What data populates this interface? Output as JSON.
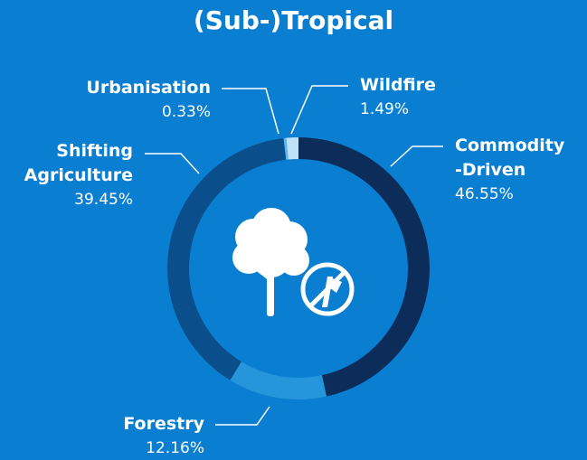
{
  "chart_data": {
    "type": "donut",
    "title": "(Sub-)Tropical",
    "series": [
      {
        "name": "Commodity\n-Driven",
        "color": "#0c2d5a",
        "values": [
          46.55
        ],
        "value_labels": [
          "46.55%"
        ]
      },
      {
        "name": "Forestry",
        "color": "#2596dc",
        "values": [
          12.16
        ],
        "value_labels": [
          "12.16%"
        ]
      },
      {
        "name": "Shifting\nAgriculture",
        "color": "#0a4f8c",
        "values": [
          39.45
        ],
        "value_labels": [
          "39.45%"
        ]
      },
      {
        "name": "Urbanisation",
        "color": "#5fb6ec",
        "values": [
          0.33
        ],
        "value_labels": [
          "0.33%"
        ]
      },
      {
        "name": "Wildfire",
        "color": "#bfe2f8",
        "values": [
          1.49
        ],
        "value_labels": [
          "1.49%"
        ]
      }
    ]
  }
}
